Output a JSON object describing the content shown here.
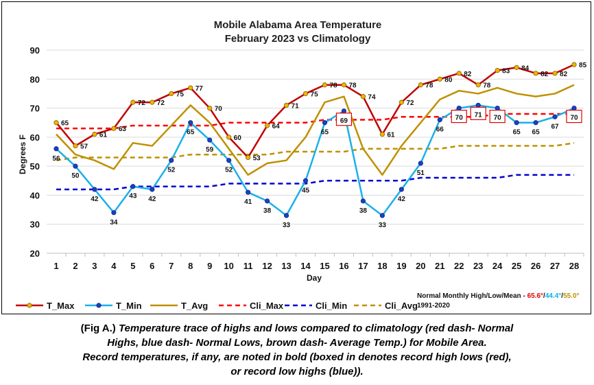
{
  "chart_data": {
    "type": "line",
    "title_line1": "Mobile Alabama Area Temperature",
    "title_line2": "February 2023 vs Climatology",
    "xlabel": "Day",
    "ylabel": "Degrees F",
    "ylim": [
      20,
      90
    ],
    "yticks": [
      20,
      30,
      40,
      50,
      60,
      70,
      80,
      90
    ],
    "x": [
      1,
      2,
      3,
      4,
      5,
      6,
      7,
      8,
      9,
      10,
      11,
      12,
      13,
      14,
      15,
      16,
      17,
      18,
      19,
      20,
      21,
      22,
      23,
      24,
      25,
      26,
      27,
      28
    ],
    "grid": "horizontal",
    "legend_position": "bottom",
    "series": [
      {
        "name": "T_Max",
        "color": "#c00000",
        "marker": "#f0b400",
        "style": "solid-marker",
        "values": [
          65,
          57,
          61,
          63,
          72,
          72,
          75,
          77,
          70,
          60,
          53,
          64,
          71,
          75,
          78,
          78,
          74,
          61,
          72,
          78,
          80,
          82,
          78,
          83,
          84,
          82,
          82,
          85
        ]
      },
      {
        "name": "T_Min",
        "color": "#1ab0ea",
        "marker": "#1f3fbf",
        "style": "solid-marker",
        "values": [
          56,
          50,
          42,
          34,
          43,
          42,
          52,
          65,
          59,
          52,
          41,
          38,
          33,
          45,
          65,
          69,
          38,
          33,
          42,
          51,
          66,
          70,
          71,
          70,
          65,
          65,
          67,
          70
        ]
      },
      {
        "name": "T_Avg",
        "color": "#bf9000",
        "style": "solid",
        "values": [
          61,
          54,
          52,
          49,
          58,
          57,
          64,
          71,
          65,
          56,
          47,
          51,
          52,
          60,
          72,
          74,
          56,
          47,
          57,
          65,
          73,
          76,
          75,
          77,
          75,
          74,
          75,
          78
        ]
      },
      {
        "name": "Cli_Max",
        "color": "#ff0000",
        "style": "dash",
        "values": [
          63,
          63,
          63,
          63,
          64,
          64,
          64,
          64,
          64,
          65,
          65,
          65,
          65,
          65,
          66,
          66,
          66,
          66,
          67,
          67,
          67,
          67,
          67,
          68,
          68,
          68,
          68,
          68
        ]
      },
      {
        "name": "Cli_Min",
        "color": "#0000d0",
        "style": "dash",
        "values": [
          42,
          42,
          42,
          42,
          43,
          43,
          43,
          43,
          43,
          44,
          44,
          44,
          44,
          44,
          45,
          45,
          45,
          45,
          45,
          46,
          46,
          46,
          46,
          46,
          47,
          47,
          47,
          47
        ]
      },
      {
        "name": "Cli_Avg",
        "color": "#bf9000",
        "style": "dash",
        "values": [
          52,
          53,
          53,
          53,
          53,
          53,
          53,
          54,
          54,
          54,
          54,
          54,
          55,
          55,
          55,
          55,
          56,
          56,
          56,
          56,
          56,
          57,
          57,
          57,
          57,
          57,
          57,
          58
        ]
      }
    ],
    "max_labels": {
      "days": [
        1,
        2,
        3,
        4,
        5,
        6,
        7,
        8,
        9,
        10,
        11,
        12,
        13,
        14,
        15,
        16,
        17,
        18,
        19,
        20,
        21,
        22,
        23,
        24,
        25,
        26,
        27,
        28
      ],
      "texts": [
        "65",
        "57",
        "61",
        "63",
        "72",
        "72",
        "75",
        "77",
        "70",
        "60",
        "53",
        "64",
        "71",
        "75",
        "78",
        "78",
        "74",
        "61",
        "72",
        "78",
        "80",
        "82",
        "78",
        "83",
        "84",
        "82",
        "82",
        "85"
      ],
      "record_days": [
        21,
        22,
        24,
        25,
        26,
        27,
        28
      ]
    },
    "min_labels": {
      "days": [
        1,
        2,
        3,
        4,
        5,
        6,
        7,
        8,
        9,
        10,
        11,
        12,
        13,
        14,
        15,
        16,
        17,
        18,
        19,
        20,
        21,
        22,
        23,
        24,
        25,
        26,
        27,
        28
      ],
      "texts": [
        "56",
        "50",
        "42",
        "34",
        "43",
        "42",
        "52",
        "65",
        "59",
        "52",
        "41",
        "38",
        "33",
        "45",
        "65",
        "69",
        "38",
        "33",
        "42",
        "51",
        "66",
        "70",
        "71",
        "70",
        "65",
        "65",
        "67",
        "70"
      ],
      "boxed_days": [
        16,
        22,
        23,
        24,
        28
      ]
    },
    "normals": {
      "label": "Normal Monthly High/Low/Mean - ",
      "high": "65.6°",
      "sep1": "/",
      "low": "44.4°",
      "sep2": "/",
      "mean": "55.0°",
      "period": "1991-2020",
      "high_color": "#e00000",
      "low_color": "#00b0f0",
      "mean_color": "#bf9000"
    }
  },
  "caption": {
    "prefix": "(Fig A.) ",
    "line1": "Temperature trace of highs and lows compared to climatology (red dash- Normal",
    "line2": "Highs, blue dash- Normal Lows, brown dash- Average Temp.) for Mobile Area.",
    "line3": "Record temperatures, if any, are noted in bold (boxed in denotes record high lows (red),",
    "line4": "or record low highs (blue))."
  }
}
